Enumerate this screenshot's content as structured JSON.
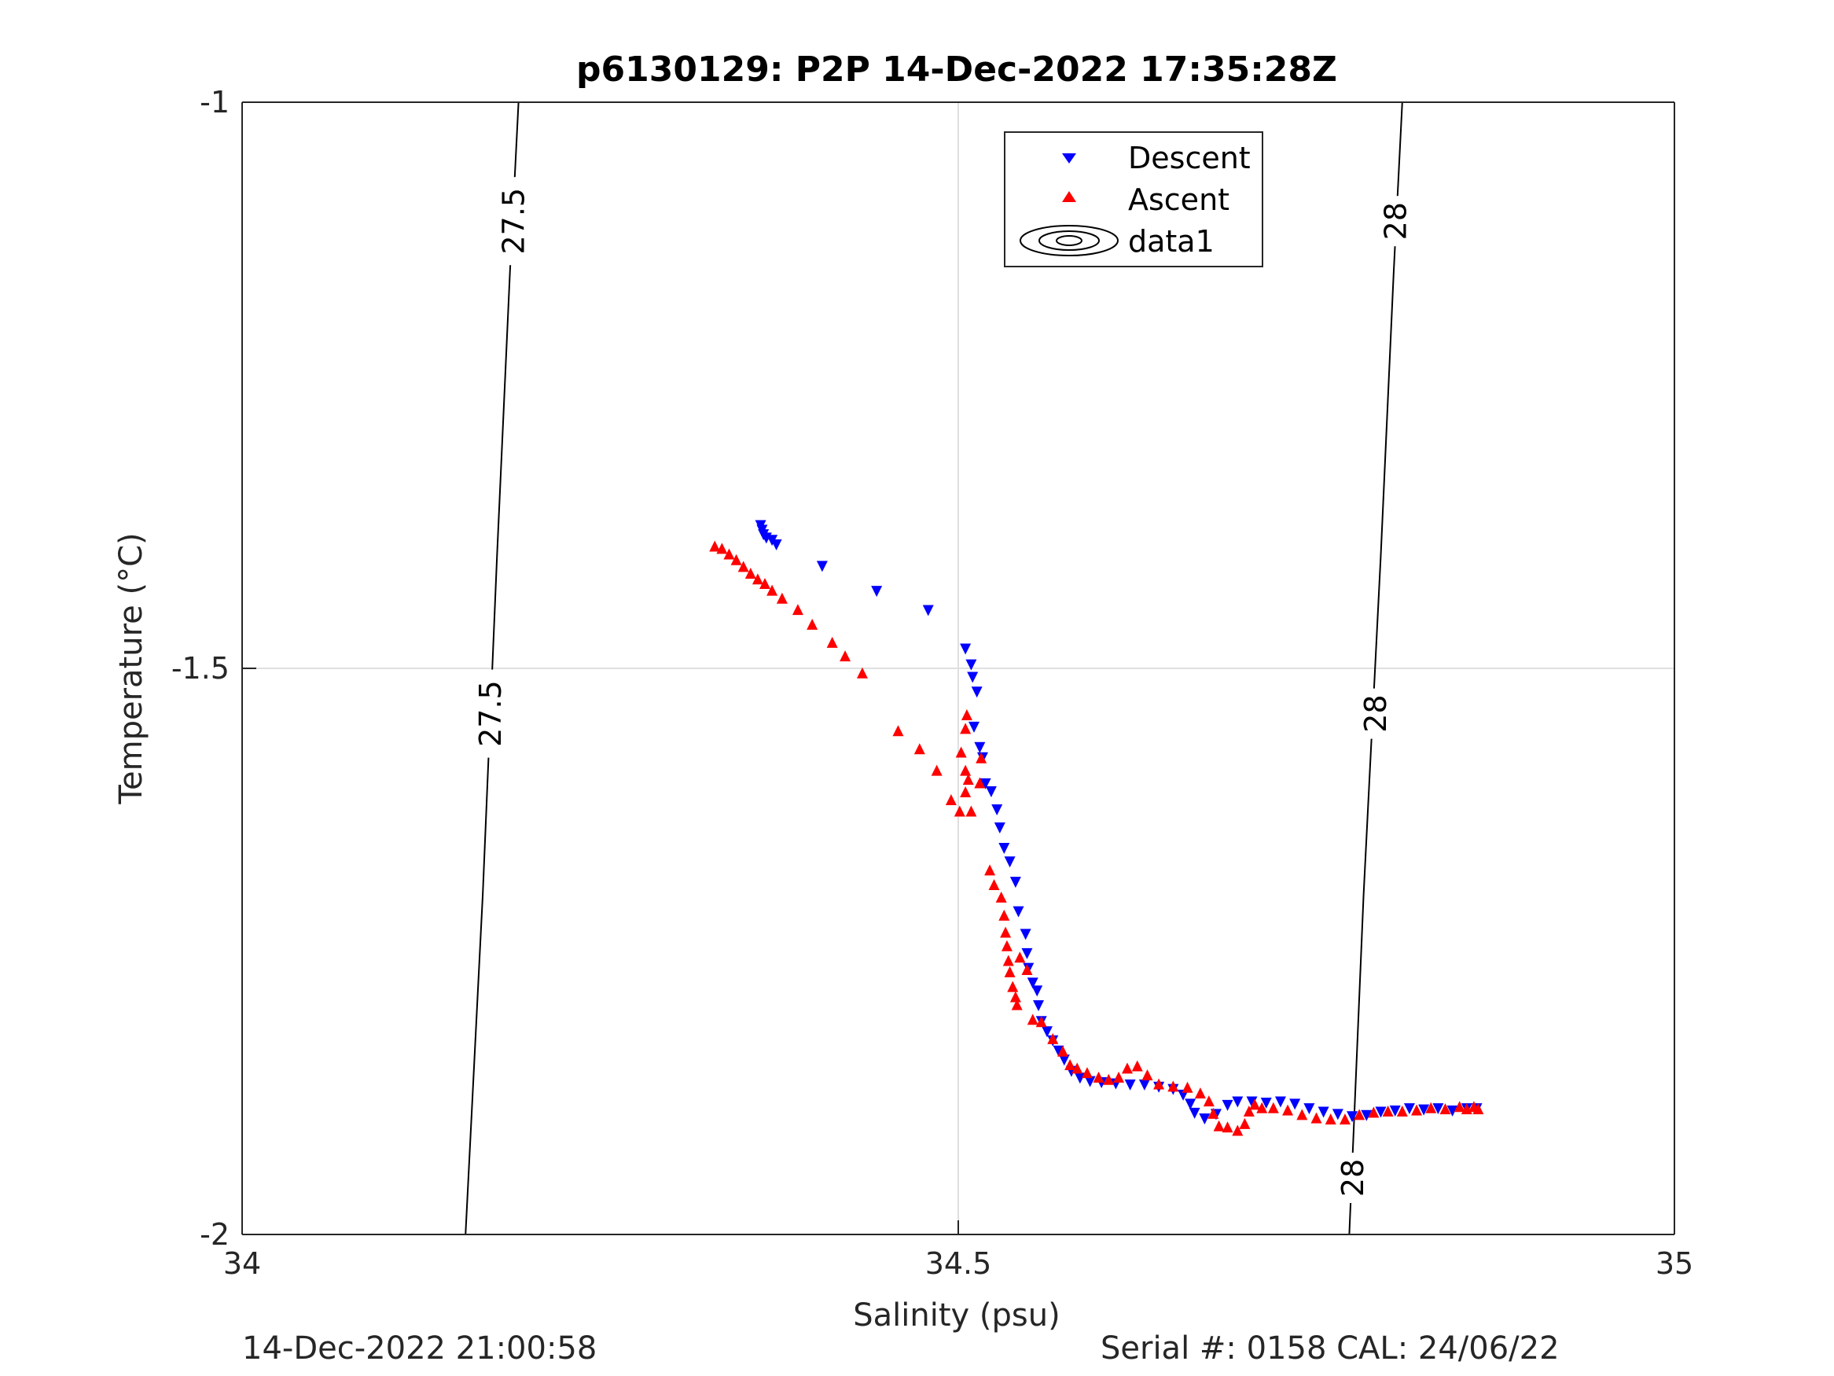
{
  "chart_data": {
    "type": "scatter",
    "title": "p6130129: P2P 14-Dec-2022 17:35:28Z",
    "xlabel": "Salinity (psu)",
    "ylabel": "Temperature (°C)",
    "xlim": [
      34,
      35
    ],
    "ylim": [
      -2,
      -1
    ],
    "xticks": [
      "34",
      "34.5",
      "35"
    ],
    "yticks": [
      "-1",
      "-1.5",
      "-2"
    ],
    "grid": true,
    "legend_position": "top-center",
    "legend": [
      "Descent",
      "Ascent",
      "data1"
    ],
    "contour_labels": [
      "27.5",
      "27.5",
      "28",
      "28",
      "28"
    ],
    "colors": {
      "descent": "#0000ff",
      "ascent": "#ff0000",
      "contour": "#000000",
      "grid": "#dfdfdf"
    },
    "series": [
      {
        "name": "Descent",
        "marker": "triangle-down",
        "color": "#0000ff",
        "points": [
          [
            34.362,
            -1.374
          ],
          [
            34.363,
            -1.378
          ],
          [
            34.364,
            -1.382
          ],
          [
            34.366,
            -1.385
          ],
          [
            34.37,
            -1.387
          ],
          [
            34.373,
            -1.391
          ],
          [
            34.405,
            -1.41
          ],
          [
            34.443,
            -1.432
          ],
          [
            34.479,
            -1.449
          ],
          [
            34.505,
            -1.483
          ],
          [
            34.509,
            -1.497
          ],
          [
            34.51,
            -1.508
          ],
          [
            34.513,
            -1.521
          ],
          [
            34.511,
            -1.552
          ],
          [
            34.515,
            -1.57
          ],
          [
            34.517,
            -1.579
          ],
          [
            34.519,
            -1.602
          ],
          [
            34.523,
            -1.609
          ],
          [
            34.527,
            -1.625
          ],
          [
            34.529,
            -1.641
          ],
          [
            34.532,
            -1.659
          ],
          [
            34.536,
            -1.671
          ],
          [
            34.54,
            -1.689
          ],
          [
            34.542,
            -1.715
          ],
          [
            34.547,
            -1.735
          ],
          [
            34.548,
            -1.752
          ],
          [
            34.549,
            -1.765
          ],
          [
            34.552,
            -1.778
          ],
          [
            34.555,
            -1.785
          ],
          [
            34.556,
            -1.798
          ],
          [
            34.558,
            -1.812
          ],
          [
            34.562,
            -1.821
          ],
          [
            34.566,
            -1.829
          ],
          [
            34.57,
            -1.838
          ],
          [
            34.574,
            -1.846
          ],
          [
            34.579,
            -1.856
          ],
          [
            34.585,
            -1.862
          ],
          [
            34.592,
            -1.865
          ],
          [
            34.6,
            -1.866
          ],
          [
            34.61,
            -1.867
          ],
          [
            34.62,
            -1.868
          ],
          [
            34.63,
            -1.868
          ],
          [
            34.64,
            -1.87
          ],
          [
            34.65,
            -1.872
          ],
          [
            34.657,
            -1.877
          ],
          [
            34.662,
            -1.885
          ],
          [
            34.665,
            -1.893
          ],
          [
            34.672,
            -1.898
          ],
          [
            34.68,
            -1.894
          ],
          [
            34.688,
            -1.886
          ],
          [
            34.695,
            -1.883
          ],
          [
            34.705,
            -1.883
          ],
          [
            34.715,
            -1.884
          ],
          [
            34.725,
            -1.883
          ],
          [
            34.735,
            -1.885
          ],
          [
            34.745,
            -1.889
          ],
          [
            34.755,
            -1.892
          ],
          [
            34.765,
            -1.894
          ],
          [
            34.775,
            -1.896
          ],
          [
            34.785,
            -1.895
          ],
          [
            34.795,
            -1.892
          ],
          [
            34.805,
            -1.891
          ],
          [
            34.815,
            -1.889
          ],
          [
            34.825,
            -1.89
          ],
          [
            34.835,
            -1.889
          ],
          [
            34.845,
            -1.891
          ],
          [
            34.855,
            -1.889
          ],
          [
            34.862,
            -1.889
          ]
        ]
      },
      {
        "name": "Ascent",
        "marker": "triangle-up",
        "color": "#ff0000",
        "points": [
          [
            34.33,
            -1.392
          ],
          [
            34.335,
            -1.394
          ],
          [
            34.34,
            -1.399
          ],
          [
            34.345,
            -1.404
          ],
          [
            34.35,
            -1.41
          ],
          [
            34.355,
            -1.416
          ],
          [
            34.36,
            -1.421
          ],
          [
            34.365,
            -1.425
          ],
          [
            34.37,
            -1.431
          ],
          [
            34.377,
            -1.438
          ],
          [
            34.388,
            -1.448
          ],
          [
            34.398,
            -1.461
          ],
          [
            34.412,
            -1.477
          ],
          [
            34.421,
            -1.489
          ],
          [
            34.433,
            -1.504
          ],
          [
            34.458,
            -1.555
          ],
          [
            34.473,
            -1.571
          ],
          [
            34.485,
            -1.59
          ],
          [
            34.495,
            -1.616
          ],
          [
            34.501,
            -1.626
          ],
          [
            34.502,
            -1.574
          ],
          [
            34.505,
            -1.553
          ],
          [
            34.506,
            -1.541
          ],
          [
            34.505,
            -1.59
          ],
          [
            34.507,
            -1.598
          ],
          [
            34.509,
            -1.626
          ],
          [
            34.505,
            -1.609
          ],
          [
            34.516,
            -1.579
          ],
          [
            34.515,
            -1.601
          ],
          [
            34.522,
            -1.678
          ],
          [
            34.525,
            -1.691
          ],
          [
            34.53,
            -1.702
          ],
          [
            34.532,
            -1.718
          ],
          [
            34.533,
            -1.733
          ],
          [
            34.534,
            -1.745
          ],
          [
            34.535,
            -1.758
          ],
          [
            34.536,
            -1.768
          ],
          [
            34.538,
            -1.781
          ],
          [
            34.54,
            -1.79
          ],
          [
            34.541,
            -1.797
          ],
          [
            34.543,
            -1.755
          ],
          [
            34.548,
            -1.766
          ],
          [
            34.552,
            -1.81
          ],
          [
            34.558,
            -1.812
          ],
          [
            34.566,
            -1.827
          ],
          [
            34.573,
            -1.838
          ],
          [
            34.578,
            -1.85
          ],
          [
            34.583,
            -1.853
          ],
          [
            34.59,
            -1.857
          ],
          [
            34.598,
            -1.861
          ],
          [
            34.605,
            -1.863
          ],
          [
            34.612,
            -1.861
          ],
          [
            34.618,
            -1.853
          ],
          [
            34.625,
            -1.851
          ],
          [
            34.632,
            -1.859
          ],
          [
            34.64,
            -1.867
          ],
          [
            34.65,
            -1.869
          ],
          [
            34.66,
            -1.87
          ],
          [
            34.669,
            -1.875
          ],
          [
            34.675,
            -1.882
          ],
          [
            34.678,
            -1.893
          ],
          [
            34.682,
            -1.904
          ],
          [
            34.688,
            -1.905
          ],
          [
            34.695,
            -1.908
          ],
          [
            34.7,
            -1.902
          ],
          [
            34.703,
            -1.891
          ],
          [
            34.707,
            -1.885
          ],
          [
            34.712,
            -1.888
          ],
          [
            34.72,
            -1.888
          ],
          [
            34.73,
            -1.89
          ],
          [
            34.74,
            -1.894
          ],
          [
            34.75,
            -1.897
          ],
          [
            34.76,
            -1.898
          ],
          [
            34.77,
            -1.898
          ],
          [
            34.78,
            -1.894
          ],
          [
            34.79,
            -1.892
          ],
          [
            34.8,
            -1.891
          ],
          [
            34.81,
            -1.891
          ],
          [
            34.82,
            -1.89
          ],
          [
            34.83,
            -1.888
          ],
          [
            34.84,
            -1.889
          ],
          [
            34.85,
            -1.887
          ],
          [
            34.855,
            -1.889
          ],
          [
            34.86,
            -1.887
          ],
          [
            34.863,
            -1.889
          ]
        ]
      }
    ],
    "contours": [
      {
        "level": "27.5",
        "points": [
          [
            34.193,
            -1.0
          ],
          [
            34.187,
            -1.15
          ],
          [
            34.178,
            -1.4
          ],
          [
            34.168,
            -1.7
          ],
          [
            34.156,
            -2.0
          ]
        ]
      },
      {
        "level": "28",
        "points": [
          [
            34.81,
            -1.0
          ],
          [
            34.804,
            -1.15
          ],
          [
            34.795,
            -1.4
          ],
          [
            34.783,
            -1.7
          ],
          [
            34.773,
            -2.0
          ]
        ]
      }
    ],
    "contour_label_positions": [
      {
        "level": "27.5",
        "at": [
          34.189,
          -1.105
        ]
      },
      {
        "level": "27.5",
        "at": [
          34.173,
          -1.54
        ]
      },
      {
        "level": "28",
        "at": [
          34.805,
          -1.105
        ]
      },
      {
        "level": "28",
        "at": [
          34.791,
          -1.54
        ]
      },
      {
        "level": "28",
        "at": [
          34.775,
          -1.95
        ]
      }
    ]
  },
  "footer": {
    "left": "14-Dec-2022 21:00:58",
    "right": "Serial #: 0158  CAL: 24/06/22"
  }
}
